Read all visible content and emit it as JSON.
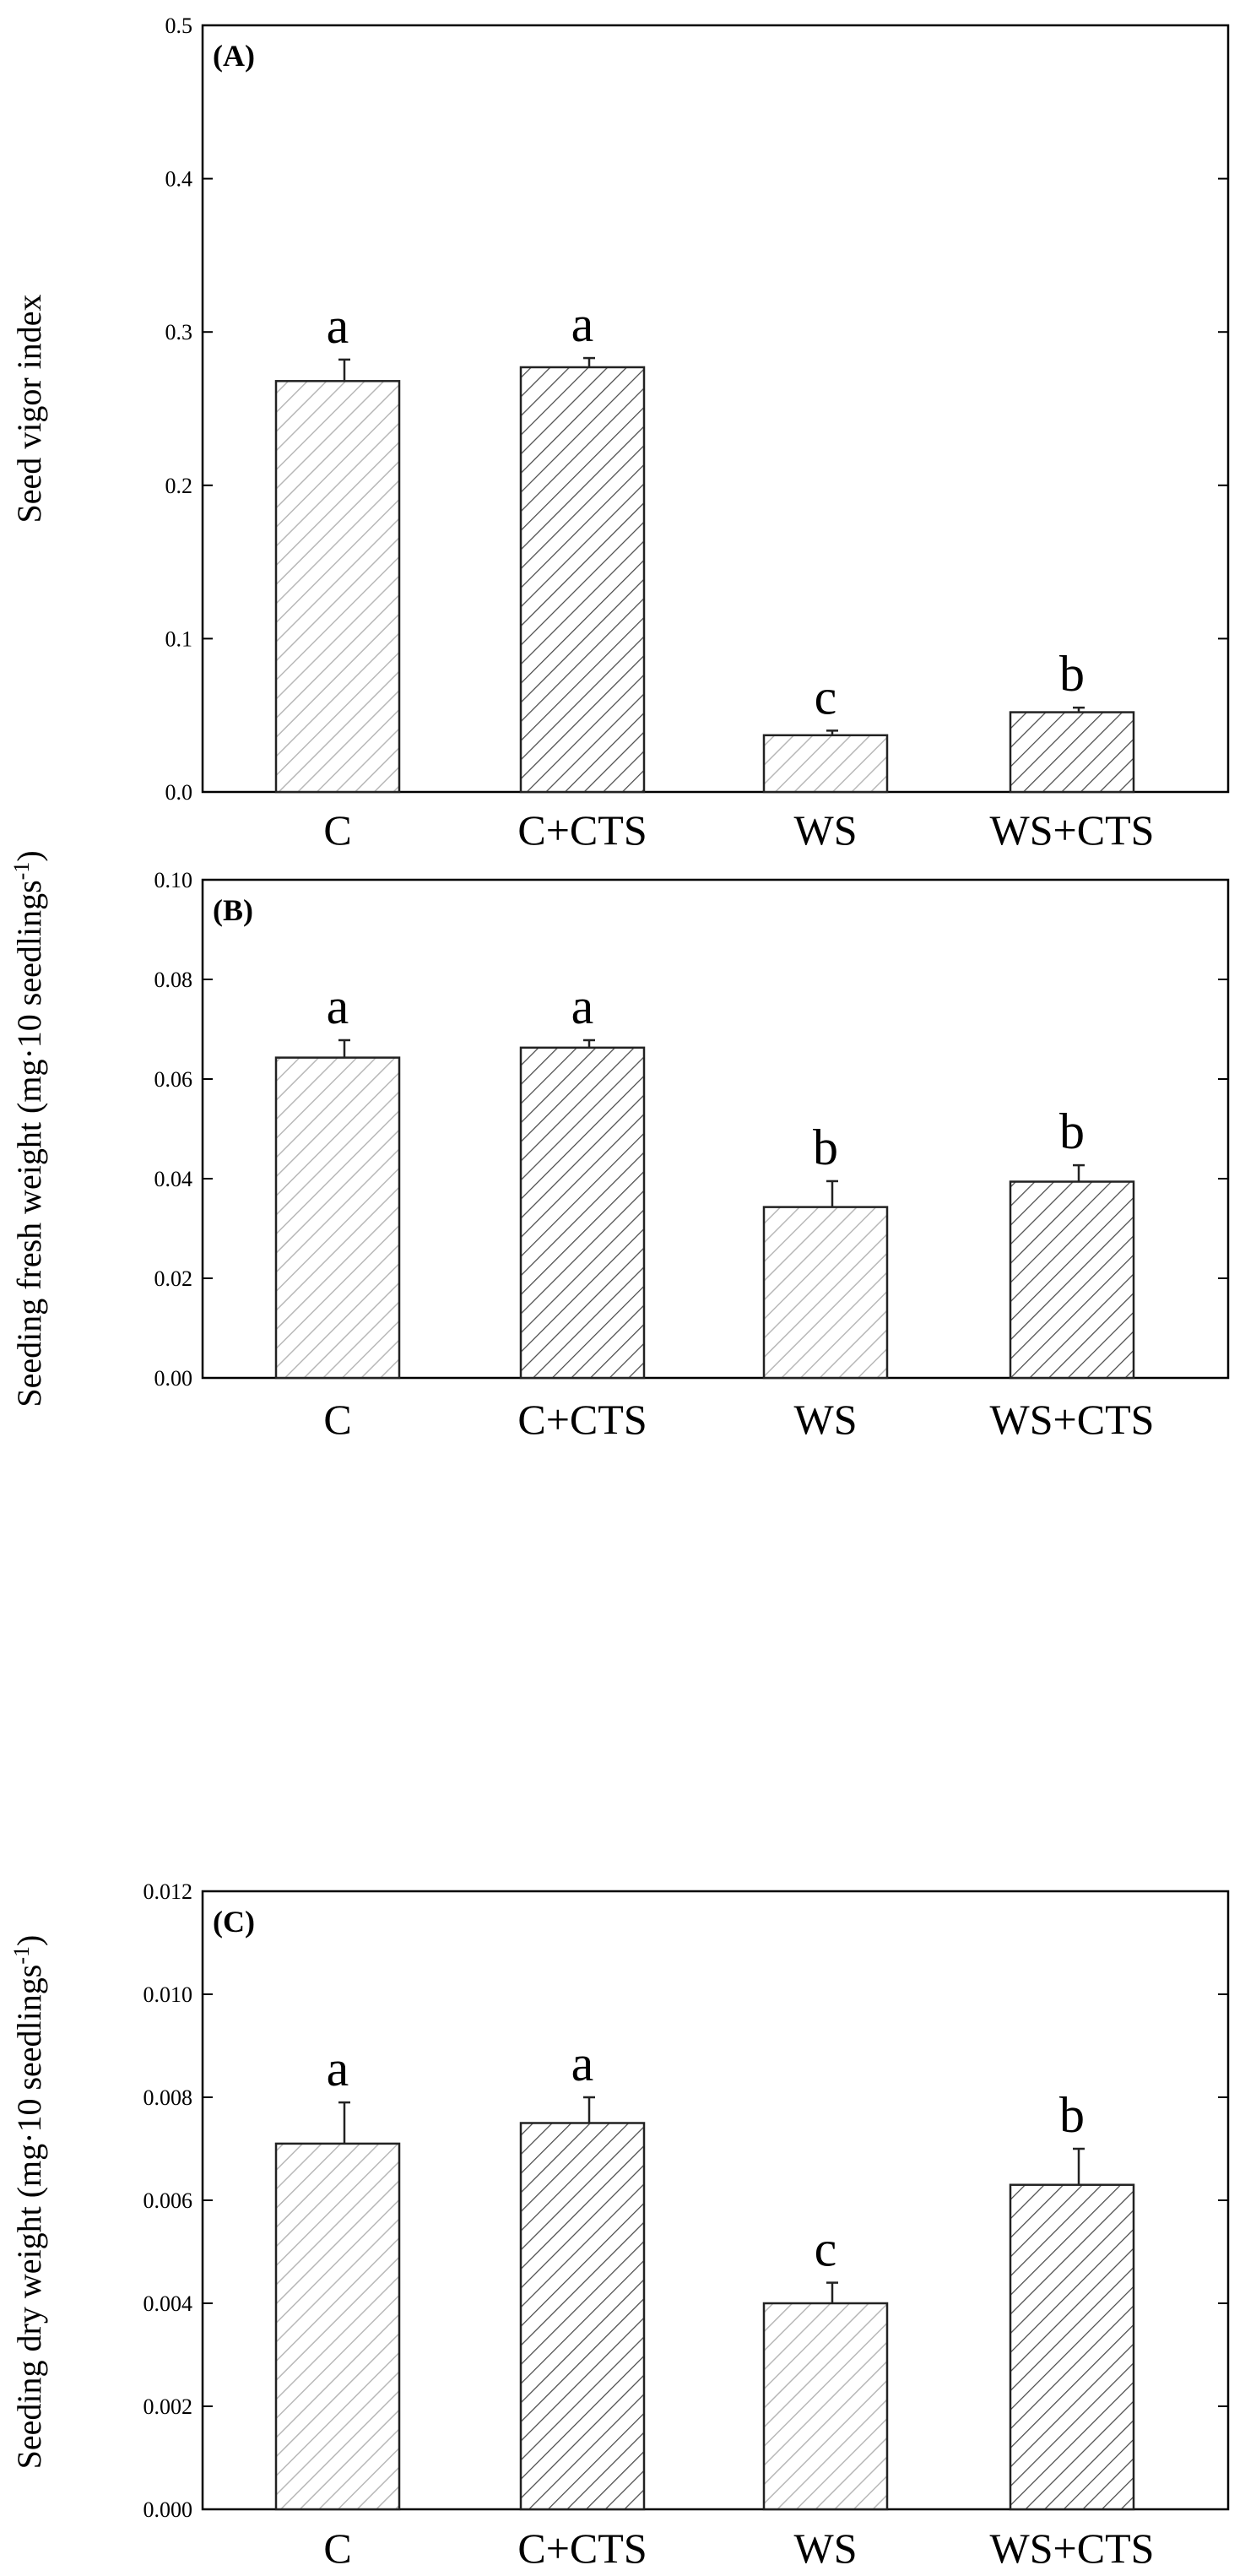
{
  "chart_data": [
    {
      "type": "bar",
      "panel_label": "(A)",
      "ylabel": "Seed vigor index",
      "ylim": [
        0,
        0.5
      ],
      "yticks": [
        "0.0",
        "0.1",
        "0.2",
        "0.3",
        "0.4",
        "0.5"
      ],
      "categories": [
        "C",
        "C+CTS",
        "WS",
        "WS+CTS"
      ],
      "values": [
        0.268,
        0.277,
        0.037,
        0.052
      ],
      "errors": [
        0.014,
        0.006,
        0.003,
        0.003
      ],
      "letters": [
        "a",
        "a",
        "c",
        "b"
      ],
      "shade": [
        "light",
        "dark",
        "light",
        "dark"
      ]
    },
    {
      "type": "bar",
      "panel_label": "(B)",
      "ylabel": "Seeding fresh weight (mg·10 seedlings",
      "ylabel_sup": "-1",
      "ylabel_end": ")",
      "ylim": [
        0,
        0.1
      ],
      "yticks": [
        "0.00",
        "0.02",
        "0.04",
        "0.06",
        "0.08",
        "0.10"
      ],
      "categories": [
        "C",
        "C+CTS",
        "WS",
        "WS+CTS"
      ],
      "values": [
        0.0643,
        0.0663,
        0.0343,
        0.0394
      ],
      "errors": [
        0.0035,
        0.0015,
        0.0052,
        0.0033
      ],
      "letters": [
        "a",
        "a",
        "b",
        "b"
      ],
      "shade": [
        "light",
        "dark",
        "light",
        "dark"
      ]
    },
    {
      "type": "bar",
      "panel_label": "(C)",
      "ylabel": "Seeding dry weight (mg·10 seedlings",
      "ylabel_sup": "-1",
      "ylabel_end": ")",
      "ylim": [
        0,
        0.012
      ],
      "yticks": [
        "0.000",
        "0.002",
        "0.004",
        "0.006",
        "0.008",
        "0.010",
        "0.012"
      ],
      "categories": [
        "C",
        "C+CTS",
        "WS",
        "WS+CTS"
      ],
      "values": [
        0.0071,
        0.0075,
        0.004,
        0.0063
      ],
      "errors": [
        0.0008,
        0.0005,
        0.0004,
        0.0007
      ],
      "letters": [
        "a",
        "a",
        "c",
        "b"
      ],
      "shade": [
        "light",
        "dark",
        "light",
        "dark"
      ]
    }
  ]
}
